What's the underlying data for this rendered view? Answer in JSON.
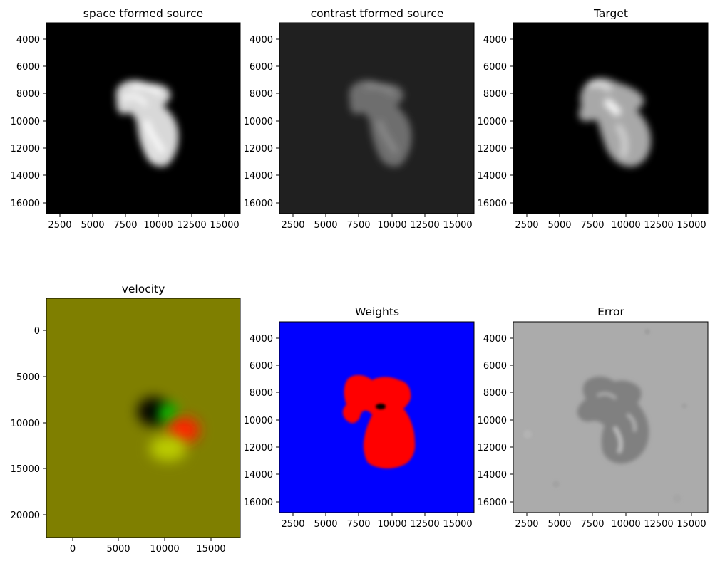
{
  "chart_data": [
    {
      "type": "heatmap",
      "title": "space tformed source",
      "colormap": "gray",
      "xlim": [
        2000,
        16700
      ],
      "ylim": [
        16700,
        3000
      ],
      "xticks": [
        2500,
        5000,
        7500,
        10000,
        12500,
        15000
      ],
      "yticks": [
        4000,
        6000,
        8000,
        10000,
        12000,
        14000,
        16000
      ],
      "background": "#000000",
      "shape_color": "#f2f2f2"
    },
    {
      "type": "heatmap",
      "title": "contrast tformed source",
      "colormap": "gray",
      "xlim": [
        2000,
        16700
      ],
      "ylim": [
        16700,
        3000
      ],
      "xticks": [
        2500,
        5000,
        7500,
        10000,
        12500,
        15000
      ],
      "yticks": [
        4000,
        6000,
        8000,
        10000,
        12000,
        14000,
        16000
      ],
      "background": "#202020",
      "shape_color": "#8a8a8a"
    },
    {
      "type": "heatmap",
      "title": "Target",
      "colormap": "gray",
      "xlim": [
        2000,
        16700
      ],
      "ylim": [
        16700,
        3000
      ],
      "xticks": [
        2500,
        5000,
        7500,
        10000,
        12500,
        15000
      ],
      "yticks": [
        4000,
        6000,
        8000,
        10000,
        12000,
        14000,
        16000
      ],
      "background": "#000000",
      "shape_color": "#e6e6e6"
    },
    {
      "type": "heatmap",
      "title": "velocity",
      "colormap": "rgb",
      "xlim": [
        -3000,
        18000
      ],
      "ylim": [
        22500,
        -3500
      ],
      "xticks": [
        0,
        5000,
        10000,
        15000
      ],
      "yticks": [
        0,
        5000,
        10000,
        15000,
        20000
      ],
      "background": "#7f7f00"
    },
    {
      "type": "heatmap",
      "title": "Weights",
      "colormap": "rgb",
      "xlim": [
        2000,
        16700
      ],
      "ylim": [
        16700,
        3000
      ],
      "xticks": [
        2500,
        5000,
        7500,
        10000,
        12500,
        15000
      ],
      "yticks": [
        4000,
        6000,
        8000,
        10000,
        12000,
        14000,
        16000
      ],
      "background": "#0000ff",
      "shape_color": "#ff0000"
    },
    {
      "type": "heatmap",
      "title": "Error",
      "colormap": "gray",
      "xlim": [
        2000,
        16700
      ],
      "ylim": [
        16700,
        3000
      ],
      "xticks": [
        2500,
        5000,
        7500,
        10000,
        12500,
        15000
      ],
      "yticks": [
        4000,
        6000,
        8000,
        10000,
        12000,
        14000,
        16000
      ],
      "background": "#ababab",
      "shape_color": "#808080"
    }
  ]
}
